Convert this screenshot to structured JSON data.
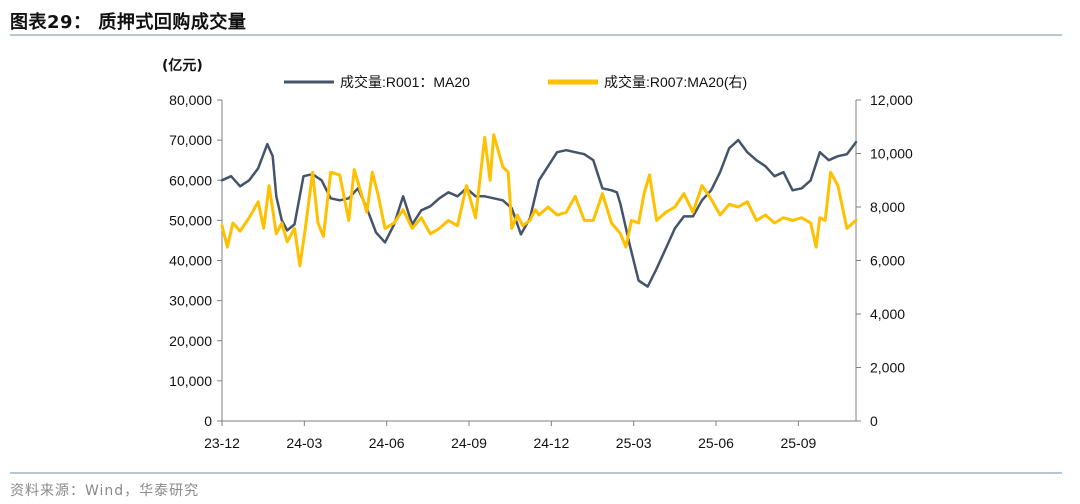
{
  "figure": {
    "title": "图表29：  质押式回购成交量",
    "source": "资料来源：Wind，华泰研究"
  },
  "chart_data": {
    "type": "line",
    "unit_label": "(亿元)",
    "x_ticks": [
      "23-12",
      "24-03",
      "24-06",
      "24-09",
      "24-12",
      "25-03",
      "25-06",
      "25-09"
    ],
    "left_axis": {
      "ylim": [
        0,
        80000
      ],
      "ticks": [
        "0",
        "10,000",
        "20,000",
        "30,000",
        "40,000",
        "50,000",
        "60,000",
        "70,000",
        "80,000"
      ]
    },
    "right_axis": {
      "ylim": [
        0,
        12000
      ],
      "ticks": [
        "0",
        "2,000",
        "4,000",
        "6,000",
        "8,000",
        "10,000",
        "12,000"
      ]
    },
    "colors": {
      "r001": "#44546a",
      "r007": "#ffc000",
      "axis": "#7f7f7f"
    },
    "series": [
      {
        "name": "成交量:R001：MA20",
        "axis": "left",
        "x": [
          0,
          0.5,
          1,
          1.5,
          2,
          2.5,
          2.8,
          3,
          3.3,
          3.6,
          4,
          4.5,
          5,
          5.5,
          6,
          6.5,
          7,
          7.5,
          8,
          8.5,
          9,
          9.5,
          10,
          10.5,
          11,
          11.5,
          12,
          12.5,
          13,
          13.5,
          14,
          14.5,
          15,
          15.5,
          16,
          16.5,
          17,
          17.5,
          18,
          18.5,
          19,
          19.5,
          20,
          20.5,
          21,
          21.5,
          21.8,
          22,
          22.5,
          23,
          23.5,
          24,
          24.5,
          25,
          25.5,
          26,
          26.5,
          27,
          27.5,
          28,
          28.5,
          29,
          29.5,
          30,
          30.5,
          31,
          31.5,
          32,
          32.5,
          33,
          33.5,
          34,
          34.5,
          35
        ],
        "values": [
          60000,
          61000,
          58500,
          60000,
          63000,
          69000,
          66000,
          56000,
          50000,
          47500,
          49000,
          61000,
          61500,
          60000,
          55500,
          55000,
          55500,
          58000,
          53000,
          47000,
          44500,
          49000,
          56000,
          49000,
          52500,
          53500,
          55500,
          57000,
          56000,
          58000,
          56000,
          56000,
          55500,
          55000,
          53000,
          46500,
          50500,
          60000,
          63500,
          67000,
          67500,
          67000,
          66500,
          65000,
          58000,
          57500,
          57000,
          54000,
          44000,
          35000,
          33500,
          38000,
          43000,
          48000,
          51000,
          51000,
          55000,
          57500,
          62000,
          68000,
          70000,
          67000,
          65000,
          63500,
          61000,
          62000,
          57500,
          58000,
          60000,
          67000,
          65000,
          66000,
          66500,
          69500
        ]
      },
      {
        "name": "成交量:R007:MA20(右)",
        "axis": "right",
        "x": [
          0,
          0.3,
          0.6,
          1,
          1.5,
          2,
          2.3,
          2.6,
          3,
          3.3,
          3.6,
          4,
          4.3,
          4.6,
          5,
          5.3,
          5.6,
          6,
          6.5,
          7,
          7.3,
          7.6,
          8,
          8.3,
          8.6,
          9,
          9.5,
          10,
          10.5,
          11,
          11.5,
          12,
          12.5,
          13,
          13.5,
          14,
          14.5,
          14.8,
          15,
          15.5,
          15.8,
          16,
          16.3,
          16.6,
          17,
          17.3,
          17.5,
          18,
          18.5,
          19,
          19.5,
          20,
          20.5,
          21,
          21.5,
          22,
          22.3,
          22.6,
          23,
          23.3,
          23.6,
          24,
          24.5,
          25,
          25.5,
          26,
          26.5,
          27,
          27.5,
          28,
          28.5,
          29,
          29.5,
          30,
          30.5,
          31,
          31.5,
          32,
          32.5,
          32.8,
          33,
          33.3,
          33.6,
          34,
          34.5,
          35
        ],
        "values": [
          7300,
          6500,
          7400,
          7100,
          7600,
          8200,
          7200,
          8800,
          7000,
          7400,
          6700,
          7200,
          5800,
          7200,
          9300,
          7400,
          6900,
          9300,
          9200,
          7500,
          9400,
          8700,
          7800,
          9300,
          8500,
          7200,
          7400,
          7900,
          7200,
          7600,
          7000,
          7200,
          7500,
          7300,
          8800,
          7600,
          10600,
          9000,
          10700,
          9500,
          9300,
          7200,
          7700,
          7300,
          7500,
          7900,
          7700,
          8000,
          7700,
          7800,
          8400,
          7500,
          7500,
          8500,
          7400,
          7000,
          6500,
          7500,
          7400,
          8500,
          9200,
          7500,
          7800,
          8000,
          8500,
          7800,
          8800,
          8300,
          7700,
          8100,
          8000,
          8200,
          7500,
          7700,
          7400,
          7600,
          7500,
          7600,
          7400,
          6500,
          7600,
          7500,
          9300,
          8800,
          7200,
          7500
        ]
      }
    ]
  }
}
